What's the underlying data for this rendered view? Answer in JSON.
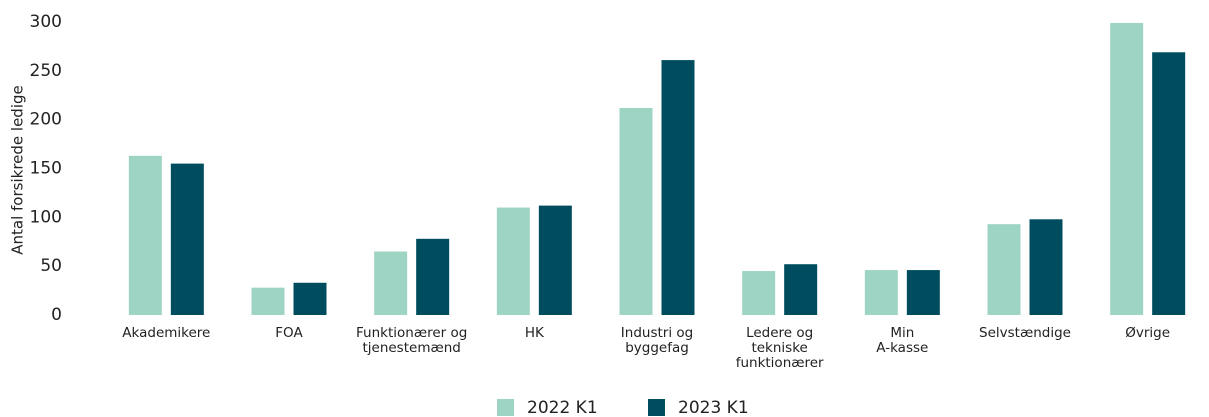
{
  "chart_data": {
    "type": "bar",
    "y_label": "Antal forsikrede ledige",
    "categories": [
      [
        "Akademikere"
      ],
      [
        "FOA"
      ],
      [
        "Funktionærer og",
        "tjenestemænd"
      ],
      [
        "HK"
      ],
      [
        "Industri og",
        "byggefag"
      ],
      [
        "Ledere og",
        "tekniske",
        "funktionærer"
      ],
      [
        "Min",
        "A-kasse"
      ],
      [
        "Selvstændige"
      ],
      [
        "Øvrige"
      ]
    ],
    "series": [
      {
        "name": "2022 K1",
        "color": "#9dd4c4",
        "values": [
          163,
          28,
          65,
          110,
          212,
          45,
          46,
          93,
          299
        ]
      },
      {
        "name": "2023 K1",
        "color": "#004c5f",
        "values": [
          155,
          33,
          78,
          112,
          261,
          52,
          46,
          98,
          269
        ]
      }
    ],
    "ylim": [
      0,
      300
    ],
    "yticks": [
      0,
      50,
      100,
      150,
      200,
      250,
      300
    ],
    "grid": false,
    "legend": "bottom"
  }
}
